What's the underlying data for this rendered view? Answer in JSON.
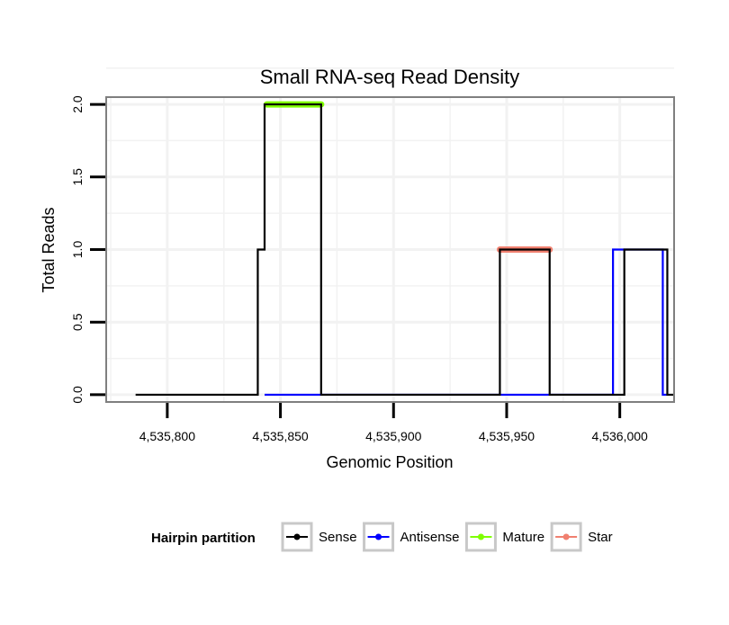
{
  "chart_data": {
    "type": "line",
    "title": "Small RNA-seq Read Density",
    "xlabel": "Genomic Position",
    "ylabel": "Total Reads",
    "xlim": [
      4535773,
      4536024
    ],
    "ylim": [
      -0.05,
      2.05
    ],
    "x_ticks": [
      4535800,
      4535850,
      4535900,
      4535950,
      4536000
    ],
    "x_tick_labels": [
      "4,535,800",
      "4,535,850",
      "4,535,900",
      "4,535,950",
      "4,536,000"
    ],
    "y_ticks": [
      0,
      0.5,
      1,
      1.5,
      2
    ],
    "y_tick_labels": [
      "0.0",
      "0.5",
      "1.0",
      "1.5",
      "2.0"
    ],
    "grid": true,
    "legend": {
      "title": "Hairpin partition",
      "placement": "bottom",
      "entries": [
        "Sense",
        "Antisense",
        "Mature",
        "Star"
      ]
    },
    "series": [
      {
        "name": "Sense",
        "color": "#000000",
        "style": "thin",
        "x": [
          4535786,
          4535840,
          4535840,
          4535843,
          4535843,
          4535868,
          4535868,
          4535947,
          4535947,
          4535969,
          4535969,
          4536002,
          4536002,
          4536021,
          4536021,
          4536024
        ],
        "y": [
          0,
          0,
          1,
          1,
          2,
          2,
          0,
          0,
          1,
          1,
          0,
          0,
          1,
          1,
          0,
          0
        ]
      },
      {
        "name": "Antisense",
        "color": "#0000ff",
        "style": "thin",
        "x": [
          4535843,
          4535997,
          4535997,
          4536019,
          4536019,
          4536021
        ],
        "y": [
          0,
          0,
          1,
          1,
          0,
          0
        ]
      },
      {
        "name": "Mature",
        "color": "#7fff00",
        "style": "thick",
        "x": [
          4535844,
          4535868
        ],
        "y": [
          2,
          2
        ]
      },
      {
        "name": "Star",
        "color": "#f08070",
        "style": "thick",
        "x": [
          4535947,
          4535969
        ],
        "y": [
          1,
          1
        ]
      }
    ]
  }
}
